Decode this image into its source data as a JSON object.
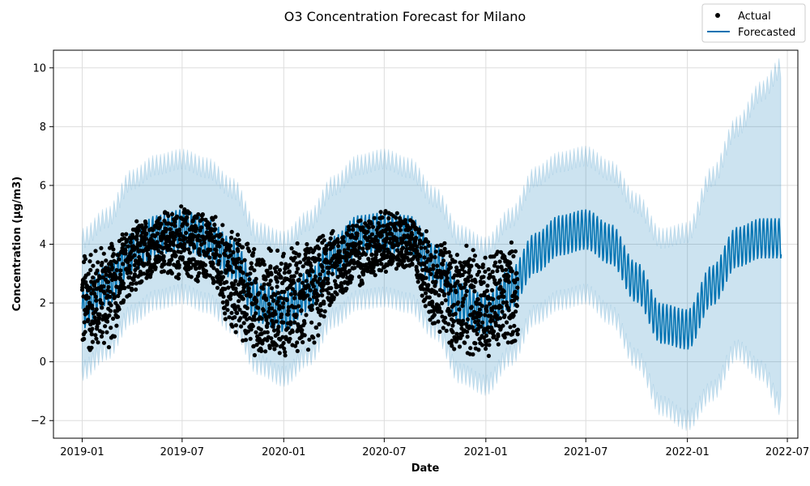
{
  "chart_data": {
    "type": "scatter",
    "title": "O3 Concentration Forecast for Milano",
    "xlabel": "Date",
    "ylabel": "Concentration (µg/m3)",
    "xlim": [
      "2018-11-10",
      "2022-07-20"
    ],
    "ylim": [
      -2.6,
      10.6
    ],
    "grid": true,
    "legend_position": "top-right",
    "x_ticks": [
      "2019-01",
      "2019-07",
      "2020-01",
      "2020-07",
      "2021-01",
      "2021-07",
      "2022-01",
      "2022-07"
    ],
    "y_ticks": [
      -2,
      0,
      2,
      4,
      6,
      8,
      10
    ],
    "y_tick_labels": [
      "−2",
      "0",
      "2",
      "4",
      "6",
      "8",
      "10"
    ],
    "actual_range": [
      "2019-01-01",
      "2021-02-28"
    ],
    "forecast_range": [
      "2019-01-01",
      "2022-06-20"
    ],
    "forecast_period_days": 7,
    "forecast_center": [
      {
        "x": "2019-01-01",
        "y": 1.8
      },
      {
        "x": "2019-02-15",
        "y": 2.6
      },
      {
        "x": "2019-04-01",
        "y": 3.7
      },
      {
        "x": "2019-05-15",
        "y": 4.3
      },
      {
        "x": "2019-07-01",
        "y": 4.5
      },
      {
        "x": "2019-08-15",
        "y": 4.2
      },
      {
        "x": "2019-10-01",
        "y": 3.5
      },
      {
        "x": "2019-11-15",
        "y": 2.0
      },
      {
        "x": "2020-01-01",
        "y": 1.7
      },
      {
        "x": "2020-02-15",
        "y": 2.4
      },
      {
        "x": "2020-04-01",
        "y": 3.6
      },
      {
        "x": "2020-05-15",
        "y": 4.3
      },
      {
        "x": "2020-07-01",
        "y": 4.4
      },
      {
        "x": "2020-08-15",
        "y": 4.3
      },
      {
        "x": "2020-10-01",
        "y": 3.3
      },
      {
        "x": "2020-11-15",
        "y": 2.0
      },
      {
        "x": "2021-01-01",
        "y": 1.6
      },
      {
        "x": "2021-02-15",
        "y": 2.5
      },
      {
        "x": "2021-04-01",
        "y": 3.7
      },
      {
        "x": "2021-05-15",
        "y": 4.3
      },
      {
        "x": "2021-07-01",
        "y": 4.5
      },
      {
        "x": "2021-08-15",
        "y": 4.0
      },
      {
        "x": "2021-10-01",
        "y": 2.7
      },
      {
        "x": "2021-11-15",
        "y": 1.3
      },
      {
        "x": "2022-01-01",
        "y": 1.1
      },
      {
        "x": "2022-02-15",
        "y": 2.6
      },
      {
        "x": "2022-04-01",
        "y": 3.9
      },
      {
        "x": "2022-05-15",
        "y": 4.2
      },
      {
        "x": "2022-06-20",
        "y": 4.2
      }
    ],
    "forecast_amplitude": 0.7,
    "band_upper": [
      {
        "x": "2019-01-01",
        "y": 4.2
      },
      {
        "x": "2019-02-15",
        "y": 4.9
      },
      {
        "x": "2019-04-01",
        "y": 6.2
      },
      {
        "x": "2019-05-15",
        "y": 6.7
      },
      {
        "x": "2019-07-01",
        "y": 6.9
      },
      {
        "x": "2019-08-15",
        "y": 6.6
      },
      {
        "x": "2019-10-01",
        "y": 5.9
      },
      {
        "x": "2019-11-15",
        "y": 4.4
      },
      {
        "x": "2020-01-01",
        "y": 4.1
      },
      {
        "x": "2020-02-15",
        "y": 4.8
      },
      {
        "x": "2020-04-01",
        "y": 6.0
      },
      {
        "x": "2020-05-15",
        "y": 6.7
      },
      {
        "x": "2020-07-01",
        "y": 6.9
      },
      {
        "x": "2020-08-15",
        "y": 6.6
      },
      {
        "x": "2020-10-01",
        "y": 5.6
      },
      {
        "x": "2020-11-15",
        "y": 4.3
      },
      {
        "x": "2021-01-01",
        "y": 3.9
      },
      {
        "x": "2021-02-15",
        "y": 4.9
      },
      {
        "x": "2021-04-01",
        "y": 6.3
      },
      {
        "x": "2021-05-15",
        "y": 6.8
      },
      {
        "x": "2021-07-01",
        "y": 7.0
      },
      {
        "x": "2021-08-15",
        "y": 6.5
      },
      {
        "x": "2021-10-01",
        "y": 5.4
      },
      {
        "x": "2021-11-15",
        "y": 4.2
      },
      {
        "x": "2022-01-01",
        "y": 4.4
      },
      {
        "x": "2022-02-15",
        "y": 6.3
      },
      {
        "x": "2022-04-01",
        "y": 8.0
      },
      {
        "x": "2022-05-15",
        "y": 9.2
      },
      {
        "x": "2022-06-20",
        "y": 10.0
      }
    ],
    "band_lower": [
      {
        "x": "2019-01-01",
        "y": -0.3
      },
      {
        "x": "2019-02-15",
        "y": 0.4
      },
      {
        "x": "2019-04-01",
        "y": 1.6
      },
      {
        "x": "2019-05-15",
        "y": 2.1
      },
      {
        "x": "2019-07-01",
        "y": 2.3
      },
      {
        "x": "2019-08-15",
        "y": 2.0
      },
      {
        "x": "2019-10-01",
        "y": 1.3
      },
      {
        "x": "2019-11-15",
        "y": -0.1
      },
      {
        "x": "2020-01-01",
        "y": -0.5
      },
      {
        "x": "2020-02-15",
        "y": 0.2
      },
      {
        "x": "2020-04-01",
        "y": 1.5
      },
      {
        "x": "2020-05-15",
        "y": 2.1
      },
      {
        "x": "2020-07-01",
        "y": 2.2
      },
      {
        "x": "2020-08-15",
        "y": 2.0
      },
      {
        "x": "2020-10-01",
        "y": 1.1
      },
      {
        "x": "2020-11-15",
        "y": -0.4
      },
      {
        "x": "2021-01-01",
        "y": -0.8
      },
      {
        "x": "2021-02-15",
        "y": 0.2
      },
      {
        "x": "2021-04-01",
        "y": 1.6
      },
      {
        "x": "2021-05-15",
        "y": 2.1
      },
      {
        "x": "2021-07-01",
        "y": 2.3
      },
      {
        "x": "2021-08-15",
        "y": 1.6
      },
      {
        "x": "2021-10-01",
        "y": 0.1
      },
      {
        "x": "2021-11-15",
        "y": -1.5
      },
      {
        "x": "2022-01-01",
        "y": -2.0
      },
      {
        "x": "2022-02-15",
        "y": -1.0
      },
      {
        "x": "2022-04-01",
        "y": 0.4
      },
      {
        "x": "2022-05-15",
        "y": -0.3
      },
      {
        "x": "2022-06-20",
        "y": -1.5
      }
    ],
    "actual_high": [
      {
        "x": "2019-01-01",
        "y": 4.0
      },
      {
        "x": "2019-02-15",
        "y": 4.2
      },
      {
        "x": "2019-04-01",
        "y": 4.8
      },
      {
        "x": "2019-05-15",
        "y": 5.1
      },
      {
        "x": "2019-07-01",
        "y": 5.4
      },
      {
        "x": "2019-08-15",
        "y": 5.2
      },
      {
        "x": "2019-10-01",
        "y": 4.6
      },
      {
        "x": "2019-11-15",
        "y": 4.1
      },
      {
        "x": "2020-01-01",
        "y": 4.0
      },
      {
        "x": "2020-02-15",
        "y": 4.3
      },
      {
        "x": "2020-04-01",
        "y": 4.6
      },
      {
        "x": "2020-05-15",
        "y": 5.0
      },
      {
        "x": "2020-07-01",
        "y": 5.3
      },
      {
        "x": "2020-08-15",
        "y": 5.0
      },
      {
        "x": "2020-10-01",
        "y": 4.4
      },
      {
        "x": "2020-11-15",
        "y": 4.0
      },
      {
        "x": "2021-01-01",
        "y": 4.0
      },
      {
        "x": "2021-02-28",
        "y": 4.3
      }
    ],
    "actual_low": [
      {
        "x": "2019-01-01",
        "y": 0.0
      },
      {
        "x": "2019-02-15",
        "y": 0.3
      },
      {
        "x": "2019-04-01",
        "y": 2.0
      },
      {
        "x": "2019-05-15",
        "y": 2.9
      },
      {
        "x": "2019-07-01",
        "y": 2.7
      },
      {
        "x": "2019-08-15",
        "y": 2.5
      },
      {
        "x": "2019-10-01",
        "y": 0.8
      },
      {
        "x": "2019-11-15",
        "y": 0.0
      },
      {
        "x": "2020-01-01",
        "y": 0.0
      },
      {
        "x": "2020-02-15",
        "y": 0.2
      },
      {
        "x": "2020-04-01",
        "y": 1.8
      },
      {
        "x": "2020-05-15",
        "y": 2.5
      },
      {
        "x": "2020-07-01",
        "y": 2.9
      },
      {
        "x": "2020-08-15",
        "y": 3.0
      },
      {
        "x": "2020-10-01",
        "y": 1.0
      },
      {
        "x": "2020-11-15",
        "y": 0.0
      },
      {
        "x": "2021-01-01",
        "y": 0.0
      },
      {
        "x": "2021-02-28",
        "y": 0.4
      }
    ],
    "series": [
      {
        "name": "Actual",
        "kind": "scatter",
        "color": "#000000"
      },
      {
        "name": "Forecasted",
        "kind": "line",
        "color": "#0072B2"
      }
    ],
    "band_color": "#0072B2"
  }
}
